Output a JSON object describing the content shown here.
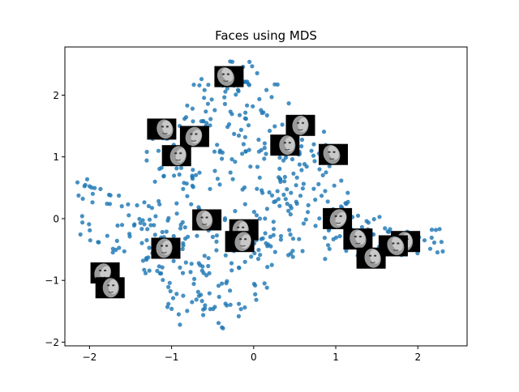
{
  "chart_data": {
    "type": "scatter",
    "title": "Faces using MDS",
    "xlabel": "",
    "ylabel": "",
    "xlim": [
      -2.3,
      2.6
    ],
    "ylim": [
      -2.06,
      2.78
    ],
    "xticks": [
      -2,
      -1,
      0,
      1,
      2
    ],
    "yticks": [
      -2,
      -1,
      0,
      1,
      2
    ],
    "xtick_labels": [
      "−2",
      "−1",
      "0",
      "1",
      "2"
    ],
    "ytick_labels": [
      "−2",
      "−1",
      "0",
      "1",
      "2"
    ],
    "grid": false,
    "legend": "none",
    "marker_color": "#1f77b4",
    "face_thumbnails": [
      {
        "x": -0.3,
        "y": 2.3
      },
      {
        "x": 0.57,
        "y": 1.51
      },
      {
        "x": -1.12,
        "y": 1.45
      },
      {
        "x": -0.72,
        "y": 1.33
      },
      {
        "x": 0.38,
        "y": 1.19
      },
      {
        "x": 0.97,
        "y": 1.04
      },
      {
        "x": -0.94,
        "y": 1.02
      },
      {
        "x": -0.57,
        "y": -0.02
      },
      {
        "x": 1.02,
        "y": 0.0
      },
      {
        "x": -0.12,
        "y": -0.18
      },
      {
        "x": 1.27,
        "y": -0.33
      },
      {
        "x": -0.17,
        "y": -0.37
      },
      {
        "x": 1.85,
        "y": -0.37
      },
      {
        "x": 1.7,
        "y": -0.44
      },
      {
        "x": -1.07,
        "y": -0.48
      },
      {
        "x": 1.43,
        "y": -0.64
      },
      {
        "x": -1.81,
        "y": -0.88
      },
      {
        "x": -1.75,
        "y": -1.12
      }
    ]
  }
}
